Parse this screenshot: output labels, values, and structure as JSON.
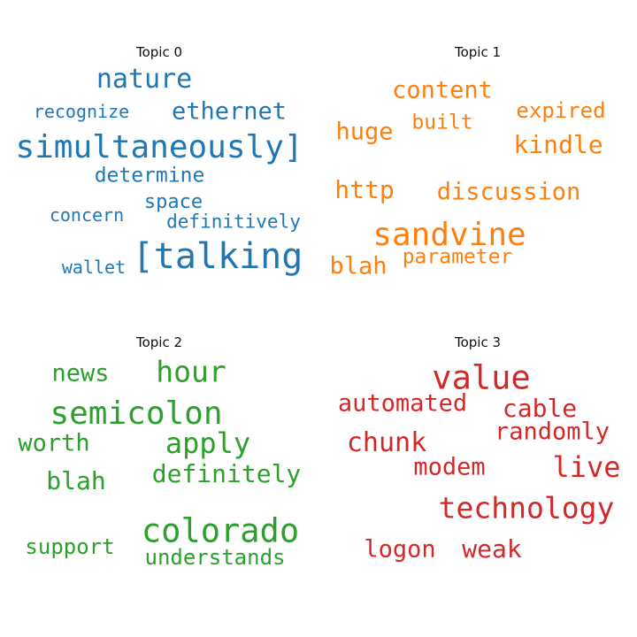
{
  "chart_data": [
    {
      "type": "wordcloud",
      "title": "Topic 0",
      "color": "#1f77b4",
      "words": [
        {
          "text": "nature",
          "weight": 0.75
        },
        {
          "text": "recognize",
          "weight": 0.5
        },
        {
          "text": "ethernet",
          "weight": 0.68
        },
        {
          "text": "simultaneously]",
          "weight": 0.9
        },
        {
          "text": "determine",
          "weight": 0.58
        },
        {
          "text": "space",
          "weight": 0.55
        },
        {
          "text": "concern",
          "weight": 0.5
        },
        {
          "text": "definitively",
          "weight": 0.52
        },
        {
          "text": "[talking",
          "weight": 1.0
        },
        {
          "text": "wallet",
          "weight": 0.5
        }
      ]
    },
    {
      "type": "wordcloud",
      "title": "Topic 1",
      "color": "#ff7f0e",
      "words": [
        {
          "text": "content",
          "weight": 0.68
        },
        {
          "text": "expired",
          "weight": 0.6
        },
        {
          "text": "built",
          "weight": 0.58
        },
        {
          "text": "huge",
          "weight": 0.68
        },
        {
          "text": "kindle",
          "weight": 0.7
        },
        {
          "text": "http",
          "weight": 0.7
        },
        {
          "text": "discussion",
          "weight": 0.68
        },
        {
          "text": "sandvine",
          "weight": 0.9
        },
        {
          "text": "blah",
          "weight": 0.68
        },
        {
          "text": "parameter",
          "weight": 0.58
        }
      ]
    },
    {
      "type": "wordcloud",
      "title": "Topic 2",
      "color": "#2ca02c",
      "words": [
        {
          "text": "news",
          "weight": 0.68
        },
        {
          "text": "hour",
          "weight": 0.82
        },
        {
          "text": "semicolon",
          "weight": 0.9
        },
        {
          "text": "worth",
          "weight": 0.68
        },
        {
          "text": "apply",
          "weight": 0.8
        },
        {
          "text": "blah",
          "weight": 0.7
        },
        {
          "text": "definitely",
          "weight": 0.7
        },
        {
          "text": "colorado",
          "weight": 0.93
        },
        {
          "text": "support",
          "weight": 0.6
        },
        {
          "text": "understands",
          "weight": 0.6
        }
      ]
    },
    {
      "type": "wordcloud",
      "title": "Topic 3",
      "color": "#d62728",
      "words": [
        {
          "text": "value",
          "weight": 0.93
        },
        {
          "text": "automated",
          "weight": 0.68
        },
        {
          "text": "cable",
          "weight": 0.7
        },
        {
          "text": "randomly",
          "weight": 0.68
        },
        {
          "text": "chunk",
          "weight": 0.75
        },
        {
          "text": "modem",
          "weight": 0.68
        },
        {
          "text": "live",
          "weight": 0.8
        },
        {
          "text": "technology",
          "weight": 0.82
        },
        {
          "text": "logon",
          "weight": 0.68
        },
        {
          "text": "weak",
          "weight": 0.7
        }
      ]
    }
  ]
}
